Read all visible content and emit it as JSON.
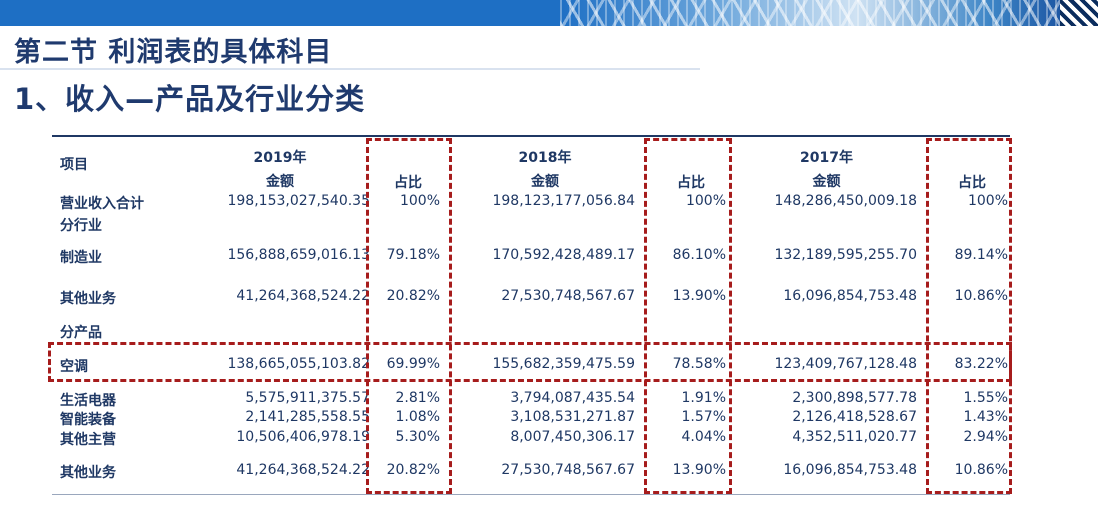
{
  "header": {
    "section_title": "第二节 利润表的具体科目",
    "subtitle": "1、收入—产品及行业分类"
  },
  "table": {
    "item_header": "项目",
    "years": [
      "2019年",
      "2018年",
      "2017年"
    ],
    "amount_header": "金额",
    "ratio_header": "占比",
    "rows": [
      {
        "label": "营业收入合计",
        "v2019": "198,153,027,540.35",
        "r2019": "100%",
        "v2018": "198,123,177,056.84",
        "r2018": "100%",
        "v2017": "148,286,450,009.18",
        "r2017": "100%"
      },
      {
        "label": "分行业",
        "v2019": "",
        "r2019": "",
        "v2018": "",
        "r2018": "",
        "v2017": "",
        "r2017": ""
      },
      {
        "label": "制造业",
        "v2019": "156,888,659,016.13",
        "r2019": "79.18%",
        "v2018": "170,592,428,489.17",
        "r2018": "86.10%",
        "v2017": "132,189,595,255.70",
        "r2017": "89.14%"
      },
      {
        "label": "其他业务",
        "v2019": "41,264,368,524.22",
        "r2019": "20.82%",
        "v2018": "27,530,748,567.67",
        "r2018": "13.90%",
        "v2017": "16,096,854,753.48",
        "r2017": "10.86%"
      },
      {
        "label": "分产品",
        "v2019": "",
        "r2019": "",
        "v2018": "",
        "r2018": "",
        "v2017": "",
        "r2017": ""
      },
      {
        "label": "空调",
        "v2019": "138,665,055,103.82",
        "r2019": "69.99%",
        "v2018": "155,682,359,475.59",
        "r2018": "78.58%",
        "v2017": "123,409,767,128.48",
        "r2017": "83.22%"
      },
      {
        "label": "生活电器",
        "v2019": "5,575,911,375.57",
        "r2019": "2.81%",
        "v2018": "3,794,087,435.54",
        "r2018": "1.91%",
        "v2017": "2,300,898,577.78",
        "r2017": "1.55%"
      },
      {
        "label": "智能装备",
        "v2019": "2,141,285,558.55",
        "r2019": "1.08%",
        "v2018": "3,108,531,271.87",
        "r2018": "1.57%",
        "v2017": "2,126,418,528.67",
        "r2017": "1.43%"
      },
      {
        "label": "其他主营",
        "v2019": "10,506,406,978.19",
        "r2019": "5.30%",
        "v2018": "8,007,450,306.17",
        "r2018": "4.04%",
        "v2017": "4,352,511,020.77",
        "r2017": "2.94%"
      },
      {
        "label": "其他业务",
        "v2019": "41,264,368,524.22",
        "r2019": "20.82%",
        "v2018": "27,530,748,567.67",
        "r2018": "13.90%",
        "v2017": "16,096,854,753.48",
        "r2017": "10.86%"
      }
    ]
  },
  "colors": {
    "banner": "#1e6fc4",
    "text": "#1f3864",
    "highlight_dash": "#a61c1c"
  }
}
